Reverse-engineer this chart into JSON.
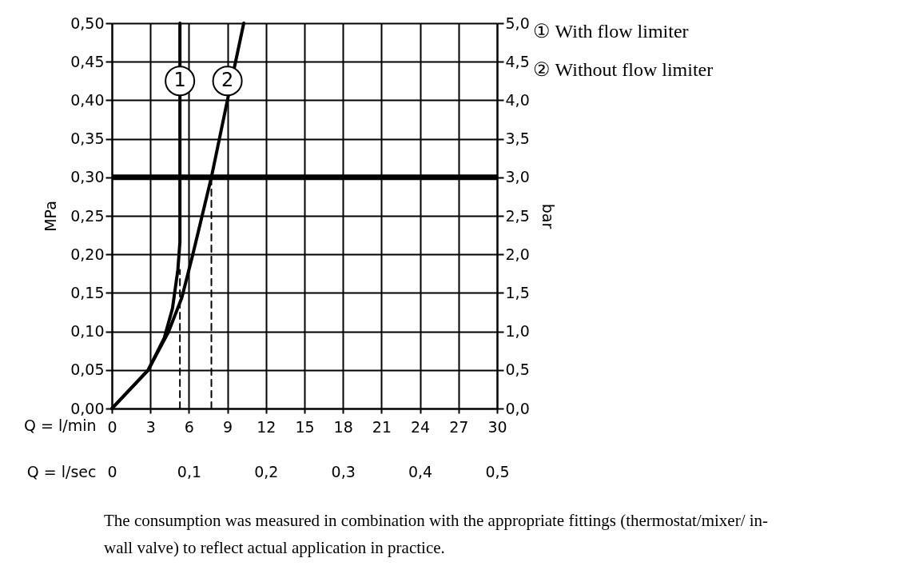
{
  "chart_data": {
    "type": "line",
    "xlabel": "Q = l/min",
    "x2label": "Q = l/sec",
    "ylabel": "MPa",
    "y2label": "bar",
    "xlim": [
      0,
      30
    ],
    "xticks": [
      0,
      3,
      6,
      9,
      12,
      15,
      18,
      21,
      24,
      27,
      30
    ],
    "x2lim": [
      0,
      0.5
    ],
    "x2ticks": [
      {
        "value": 0,
        "label": "0"
      },
      {
        "value": 0.1,
        "label": "0,1"
      },
      {
        "value": 0.2,
        "label": "0,2"
      },
      {
        "value": 0.3,
        "label": "0,3"
      },
      {
        "value": 0.4,
        "label": "0,4"
      },
      {
        "value": 0.5,
        "label": "0,5"
      }
    ],
    "ylim": [
      0,
      0.5
    ],
    "yticks": [
      {
        "value": 0,
        "label": "0,00"
      },
      {
        "value": 0.05,
        "label": "0,05"
      },
      {
        "value": 0.1,
        "label": "0,10"
      },
      {
        "value": 0.15,
        "label": "0,15"
      },
      {
        "value": 0.2,
        "label": "0,20"
      },
      {
        "value": 0.25,
        "label": "0,25"
      },
      {
        "value": 0.3,
        "label": "0,30"
      },
      {
        "value": 0.35,
        "label": "0,35"
      },
      {
        "value": 0.4,
        "label": "0,40"
      },
      {
        "value": 0.45,
        "label": "0,45"
      },
      {
        "value": 0.5,
        "label": "0,50"
      }
    ],
    "y2lim": [
      0,
      5
    ],
    "y2ticks": [
      {
        "value": 0,
        "label": "0,0"
      },
      {
        "value": 0.5,
        "label": "0,5"
      },
      {
        "value": 1,
        "label": "1,0"
      },
      {
        "value": 1.5,
        "label": "1,5"
      },
      {
        "value": 2,
        "label": "2,0"
      },
      {
        "value": 2.5,
        "label": "2,5"
      },
      {
        "value": 3,
        "label": "3,0"
      },
      {
        "value": 3.5,
        "label": "3,5"
      },
      {
        "value": 4,
        "label": "4,0"
      },
      {
        "value": 4.5,
        "label": "4,5"
      },
      {
        "value": 5,
        "label": "5,0"
      }
    ],
    "grid": true,
    "legend": "top right",
    "marker": "none",
    "series": [
      {
        "name": "① With flow limiter",
        "color": "#000000",
        "line_style": "solid",
        "x": [
          0,
          2.83,
          4.09,
          4.72,
          5.14,
          5.3,
          5.3
        ],
        "values": [
          0,
          0.05,
          0.092,
          0.13,
          0.18,
          0.216,
          0.5
        ]
      },
      {
        "name": "② Without flow limiter",
        "color": "#000000",
        "line_style": "solid",
        "x": [
          0,
          2.83,
          4.4,
          5.45,
          6.29,
          7.75,
          9.0,
          10.27
        ],
        "values": [
          0,
          0.05,
          0.099,
          0.144,
          0.199,
          0.3,
          0.4,
          0.5
        ]
      },
      {
        "color": "#000000",
        "line_style": "dashed",
        "x": [
          5.3,
          5.3
        ],
        "values": [
          0,
          0.18
        ]
      },
      {
        "color": "#000000",
        "line_style": "dashed",
        "x": [
          7.75,
          7.75
        ],
        "values": [
          0,
          0.3
        ]
      }
    ],
    "ref_lines": [
      {
        "axis": "y",
        "value": 0.3,
        "color": "#000000"
      }
    ],
    "annotations": [
      {
        "text": "1",
        "x": 5.3,
        "y": 0.425
      },
      {
        "text": "2",
        "x": 9.0,
        "y": 0.425
      },
      "The consumption was measured in combination with the appropriate fittings (thermostat/mixer/ in-wall valve) to reflect actual application in practice."
    ]
  }
}
